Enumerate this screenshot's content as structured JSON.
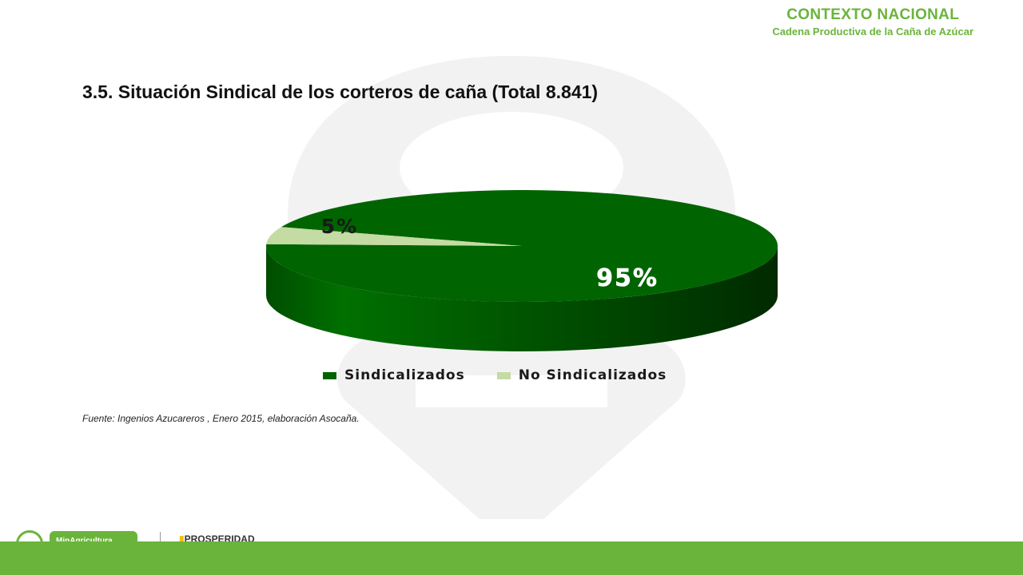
{
  "header": {
    "title": "CONTEXTO NACIONAL",
    "subtitle": "Cadena Productiva de la Caña de Azúcar"
  },
  "slide_title": "3.5. Situación Sindical  de los corteros  de caña (Total 8.841)",
  "source": "Fuente: Ingenios Azucareros , Enero 2015, elaboración Asocaña.",
  "chart_data": {
    "type": "pie",
    "style": "3d",
    "title": "",
    "categories": [
      "Sindicalizados",
      "No Sindicalizados"
    ],
    "values": [
      95,
      5
    ],
    "data_labels": [
      "95%",
      "5%"
    ],
    "colors": [
      "#006400",
      "#c4dba3"
    ],
    "legend_position": "bottom"
  },
  "logos": {
    "ministry": "MinAgricultura",
    "prosperity": "PROSPERIDAD"
  },
  "colors": {
    "accent": "#6bb43c",
    "watermark": "#f1f1f1"
  }
}
